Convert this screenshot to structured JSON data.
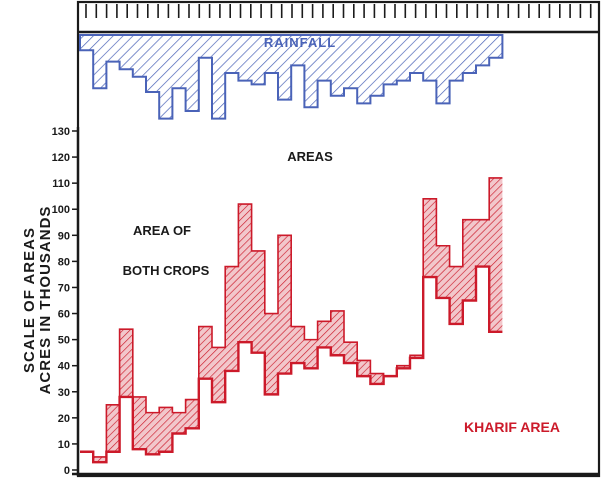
{
  "chart_data": {
    "type": "area",
    "title": "",
    "ylabel_line1": "SCALE OF AREAS",
    "ylabel_line2": "ACRES IN THOUSANDS",
    "ylim": [
      0,
      130
    ],
    "yticks": [
      0,
      10,
      20,
      30,
      40,
      50,
      60,
      70,
      80,
      90,
      100,
      110,
      120,
      130
    ],
    "ytick_labels": [
      "0",
      "10",
      "20",
      "30",
      "40",
      "50",
      "60",
      "70",
      "80",
      "90",
      "100",
      "110",
      "120",
      "130"
    ],
    "annotations": {
      "areas": "AREAS",
      "area_of": "AREA OF",
      "both_crops": "BOTH CROPS",
      "rainfall": "RAINFALL",
      "kharif_area": "KHARIF AREA"
    },
    "colors": {
      "rainfall": "#4a63b8",
      "area": "#cc1a2a",
      "axis": "#1a1a1a"
    },
    "grid": false,
    "series": [
      {
        "name": "AREA OF BOTH CROPS",
        "values": [
          7,
          5,
          25,
          54,
          28,
          22,
          24,
          22,
          27,
          55,
          47,
          78,
          102,
          84,
          60,
          90,
          55,
          50,
          57,
          61,
          49,
          42,
          37,
          36,
          40,
          44,
          104,
          86,
          78,
          96,
          96,
          112
        ]
      },
      {
        "name": "KHARIF AREA",
        "values": [
          7,
          3,
          7,
          28,
          8,
          6,
          7,
          14,
          16,
          35,
          26,
          38,
          49,
          45,
          29,
          37,
          41,
          39,
          47,
          44,
          41,
          36,
          33,
          36,
          39,
          43,
          74,
          66,
          56,
          65,
          78,
          53
        ]
      },
      {
        "name": "RAINFALL",
        "values": [
          4,
          14,
          7,
          9,
          11,
          15,
          22,
          14,
          20,
          6,
          22,
          10,
          12,
          13,
          10,
          17,
          8,
          19,
          12,
          16,
          14,
          18,
          16,
          13,
          12,
          10,
          12,
          18,
          12,
          10,
          8,
          6
        ]
      }
    ]
  }
}
